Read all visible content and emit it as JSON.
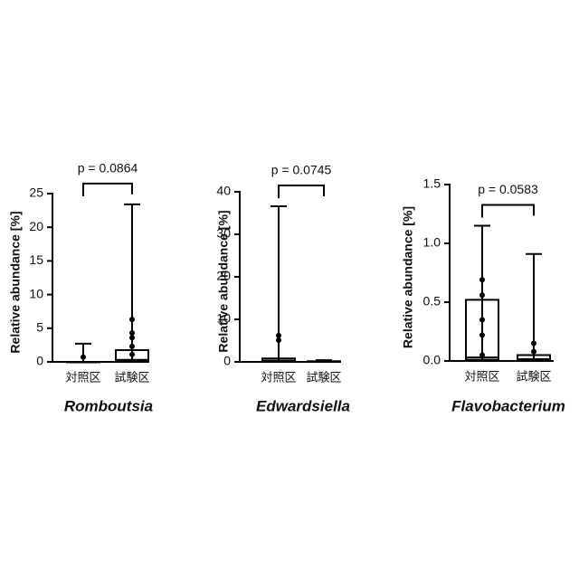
{
  "chart_data": [
    {
      "type": "box",
      "title": "Romboutsia",
      "ylabel": "Relative abundance [%]",
      "annotation": "p = 0.0864",
      "categories": [
        "対照区",
        "試験区"
      ],
      "ylim": [
        0,
        25
      ],
      "yticks": [
        0,
        5,
        10,
        15,
        20,
        25
      ],
      "boxes": [
        {
          "min": 0,
          "q1": 0,
          "median": 0,
          "q3": 0,
          "max": 2.7,
          "points": [
            0.7
          ]
        },
        {
          "min": 0,
          "q1": 0.1,
          "median": 0.3,
          "q3": 1.75,
          "max": 23.4,
          "points": [
            6.3,
            4.3,
            3.6,
            2.3,
            1.1
          ]
        }
      ]
    },
    {
      "type": "box",
      "title": "Edwardsiella",
      "ylabel": "Relative abundance [%]",
      "annotation": "p = 0.0745",
      "categories": [
        "対照区",
        "試験区"
      ],
      "ylim": [
        0,
        40
      ],
      "yticks": [
        0,
        10,
        20,
        30,
        40
      ],
      "boxes": [
        {
          "min": 0,
          "q1": 0.05,
          "median": 0.3,
          "q3": 0.8,
          "max": 36.6,
          "points": [
            6.2,
            5.1
          ]
        },
        {
          "min": 0,
          "q1": 0,
          "median": 0,
          "q3": 0.15,
          "max": 0.4,
          "points": []
        }
      ]
    },
    {
      "type": "box",
      "title": "Flavobacterium",
      "ylabel": "Relative abundance [%]",
      "annotation": "p = 0.0583",
      "categories": [
        "対照区",
        "試験区"
      ],
      "ylim": [
        0,
        1.5
      ],
      "yticks": [
        {
          "value": 0,
          "label": "0.0"
        },
        0.5,
        {
          "value": 1,
          "label": "1.0"
        },
        1.5
      ],
      "boxes": [
        {
          "min": 0,
          "q1": 0.01,
          "median": 0.03,
          "q3": 0.52,
          "max": 1.15,
          "points": [
            0.69,
            0.56,
            0.35,
            0.22,
            0.05
          ]
        },
        {
          "min": 0,
          "q1": 0.005,
          "median": 0.015,
          "q3": 0.05,
          "max": 0.91,
          "points": [
            0.15,
            0.08
          ]
        }
      ]
    }
  ]
}
